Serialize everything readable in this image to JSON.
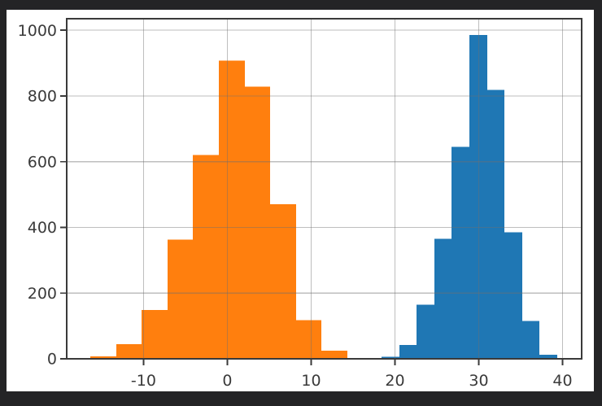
{
  "window": {
    "background_color": "#242426",
    "figure_background_color": "#ffffff"
  },
  "chart_data": {
    "type": "histogram",
    "title": "",
    "xlabel": "",
    "ylabel": "",
    "grid": true,
    "legend": false,
    "xlim": [
      -19.17,
      42.28
    ],
    "ylim": [
      0,
      1035
    ],
    "xticks": [
      -10,
      0,
      10,
      20,
      30,
      40
    ],
    "yticks": [
      0,
      200,
      400,
      600,
      800,
      1000
    ],
    "axis_color": "#3a3a3a",
    "tick_label_color": "#3a3a3a",
    "grid_color": "#6f6f6f",
    "tick_label_font_size": 19,
    "series": [
      {
        "name": "orange-distribution",
        "color": "#ff7f0e",
        "bin_edges": [
          -16.36,
          -13.29,
          -10.22,
          -7.16,
          -4.09,
          -1.02,
          2.05,
          5.11,
          8.18,
          11.25,
          14.32
        ],
        "counts": [
          7,
          44,
          148,
          363,
          620,
          908,
          828,
          470,
          118,
          25
        ]
      },
      {
        "name": "blue-distribution",
        "color": "#1f77b4",
        "bin_edges": [
          18.4,
          20.5,
          22.6,
          24.69,
          26.79,
          28.89,
          30.99,
          33.08,
          35.18,
          37.28,
          39.37
        ],
        "counts": [
          6,
          42,
          165,
          365,
          645,
          985,
          818,
          385,
          115,
          12
        ]
      }
    ]
  }
}
